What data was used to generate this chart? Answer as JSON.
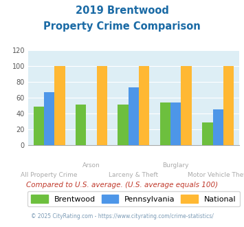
{
  "title_line1": "2019 Brentwood",
  "title_line2": "Property Crime Comparison",
  "categories": [
    "All Property Crime",
    "Arson",
    "Larceny & Theft",
    "Burglary",
    "Motor Vehicle Theft"
  ],
  "x_labels_top": [
    "",
    "Arson",
    "",
    "Burglary",
    ""
  ],
  "x_labels_bottom": [
    "All Property Crime",
    "",
    "Larceny & Theft",
    "",
    "Motor Vehicle Theft"
  ],
  "brentwood": [
    49,
    51,
    51,
    54,
    29
  ],
  "pennsylvania": [
    67,
    0,
    73,
    54,
    45
  ],
  "national": [
    100,
    100,
    100,
    100,
    100
  ],
  "bar_colors": {
    "brentwood": "#6dbf3e",
    "pennsylvania": "#4d96e8",
    "national": "#ffb833"
  },
  "ylim": [
    0,
    120
  ],
  "yticks": [
    0,
    20,
    40,
    60,
    80,
    100,
    120
  ],
  "title_color": "#1a6aa5",
  "background_color": "#ddeef5",
  "annotation_text": "Compared to U.S. average. (U.S. average equals 100)",
  "annotation_color": "#c0392b",
  "footer_text": "© 2025 CityRating.com - https://www.cityrating.com/crime-statistics/",
  "footer_color": "#7a9ab5",
  "legend_labels": [
    "Brentwood",
    "Pennsylvania",
    "National"
  ],
  "xlabel_color": "#aaaaaa"
}
